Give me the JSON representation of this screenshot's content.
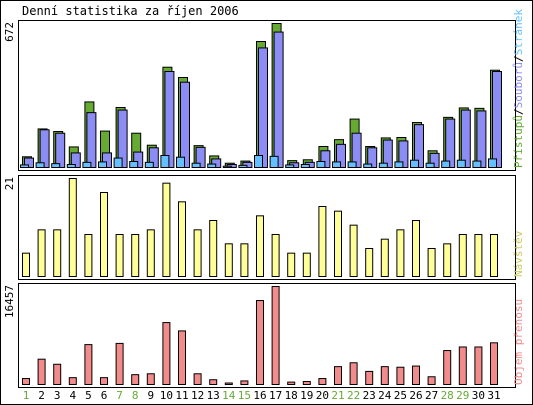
{
  "title": "Denní statistika za říjen 2006",
  "colors": {
    "background": "#ffffff",
    "panel_border": "#000000",
    "stroke": "#000000",
    "pristupu": "#66aa33",
    "souboru": "#8c8cf5",
    "stranek": "#66c0ff",
    "navstev": "#ffff99",
    "objem": "#f28c8c",
    "weekday_text": "#000000",
    "weekend_text": "#66aa33"
  },
  "chart_data": [
    {
      "type": "bar",
      "ylabel": "",
      "right_labels": [
        {
          "text": "Přístupů",
          "color": "#66aa33"
        },
        {
          "text": "/",
          "color": "#000000"
        },
        {
          "text": "Souborů",
          "color": "#8c8cf5"
        },
        {
          "text": "/",
          "color": "#000000"
        },
        {
          "text": "Stránek",
          "color": "#66c0ff"
        }
      ],
      "ymax_label": "672",
      "ylim": [
        0,
        672
      ],
      "categories": [
        "1",
        "2",
        "3",
        "4",
        "5",
        "6",
        "7",
        "8",
        "9",
        "10",
        "11",
        "12",
        "13",
        "14",
        "15",
        "16",
        "17",
        "18",
        "19",
        "20",
        "21",
        "22",
        "23",
        "24",
        "25",
        "26",
        "27",
        "28",
        "29",
        "30",
        "31"
      ],
      "series": [
        {
          "name": "Přístupů",
          "values": [
            50,
            180,
            168,
            96,
            306,
            170,
            280,
            160,
            104,
            468,
            420,
            102,
            54,
            20,
            30,
            588,
            672,
            32,
            36,
            98,
            130,
            226,
            98,
            138,
            140,
            210,
            78,
            234,
            278,
            276,
            454
          ]
        },
        {
          "name": "Souborů",
          "values": [
            44,
            176,
            160,
            68,
            256,
            68,
            268,
            72,
            92,
            448,
            398,
            94,
            40,
            14,
            24,
            558,
            632,
            22,
            24,
            78,
            108,
            160,
            92,
            128,
            124,
            200,
            66,
            226,
            268,
            264,
            448
          ]
        },
        {
          "name": "Stránek",
          "values": [
            12,
            22,
            18,
            14,
            24,
            26,
            44,
            28,
            24,
            56,
            48,
            20,
            16,
            6,
            10,
            56,
            52,
            12,
            14,
            28,
            26,
            26,
            16,
            20,
            26,
            34,
            20,
            30,
            34,
            30,
            40
          ]
        }
      ]
    },
    {
      "type": "bar",
      "ylabel": "",
      "right_labels": [
        {
          "text": "Návštěv",
          "color": "#cccc66"
        }
      ],
      "ymax_label": "21",
      "ylim": [
        0,
        21
      ],
      "categories": [
        "1",
        "2",
        "3",
        "4",
        "5",
        "6",
        "7",
        "8",
        "9",
        "10",
        "11",
        "12",
        "13",
        "14",
        "15",
        "16",
        "17",
        "18",
        "19",
        "20",
        "21",
        "22",
        "23",
        "24",
        "25",
        "26",
        "27",
        "28",
        "29",
        "30",
        "31"
      ],
      "series": [
        {
          "name": "Návštěv",
          "values": [
            5,
            10,
            10,
            21,
            9,
            18,
            9,
            9,
            10,
            20,
            16,
            10,
            12,
            7,
            7,
            13,
            9,
            5,
            5,
            15,
            14,
            11,
            6,
            8,
            10,
            12,
            6,
            7,
            9,
            9,
            9
          ]
        }
      ]
    },
    {
      "type": "bar",
      "ylabel": "",
      "right_labels": [
        {
          "text": "Objem přenosu",
          "color": "#f28c8c"
        }
      ],
      "ymax_label": "16457",
      "ylim": [
        0,
        16457
      ],
      "categories": [
        "1",
        "2",
        "3",
        "4",
        "5",
        "6",
        "7",
        "8",
        "9",
        "10",
        "11",
        "12",
        "13",
        "14",
        "15",
        "16",
        "17",
        "18",
        "19",
        "20",
        "21",
        "22",
        "23",
        "24",
        "25",
        "26",
        "27",
        "28",
        "29",
        "30",
        "31"
      ],
      "series": [
        {
          "name": "Objem přenosu",
          "values": [
            1000,
            4250,
            3400,
            1150,
            6700,
            1150,
            6900,
            1650,
            1800,
            10400,
            9000,
            1800,
            800,
            250,
            600,
            14100,
            16457,
            400,
            500,
            1000,
            3000,
            3650,
            2200,
            3000,
            2900,
            3100,
            1300,
            5700,
            6300,
            6300,
            7000
          ]
        }
      ]
    }
  ],
  "days": [
    {
      "label": "1",
      "weekend": true
    },
    {
      "label": "2",
      "weekend": false
    },
    {
      "label": "3",
      "weekend": false
    },
    {
      "label": "4",
      "weekend": false
    },
    {
      "label": "5",
      "weekend": false
    },
    {
      "label": "6",
      "weekend": false
    },
    {
      "label": "7",
      "weekend": true
    },
    {
      "label": "8",
      "weekend": true
    },
    {
      "label": "9",
      "weekend": false
    },
    {
      "label": "10",
      "weekend": false
    },
    {
      "label": "11",
      "weekend": false
    },
    {
      "label": "12",
      "weekend": false
    },
    {
      "label": "13",
      "weekend": false
    },
    {
      "label": "14",
      "weekend": true
    },
    {
      "label": "15",
      "weekend": true
    },
    {
      "label": "16",
      "weekend": false
    },
    {
      "label": "17",
      "weekend": false
    },
    {
      "label": "18",
      "weekend": false
    },
    {
      "label": "19",
      "weekend": false
    },
    {
      "label": "20",
      "weekend": false
    },
    {
      "label": "21",
      "weekend": true
    },
    {
      "label": "22",
      "weekend": true
    },
    {
      "label": "23",
      "weekend": false
    },
    {
      "label": "24",
      "weekend": false
    },
    {
      "label": "25",
      "weekend": false
    },
    {
      "label": "26",
      "weekend": false
    },
    {
      "label": "27",
      "weekend": false
    },
    {
      "label": "28",
      "weekend": true
    },
    {
      "label": "29",
      "weekend": true
    },
    {
      "label": "30",
      "weekend": false
    },
    {
      "label": "31",
      "weekend": false
    }
  ]
}
